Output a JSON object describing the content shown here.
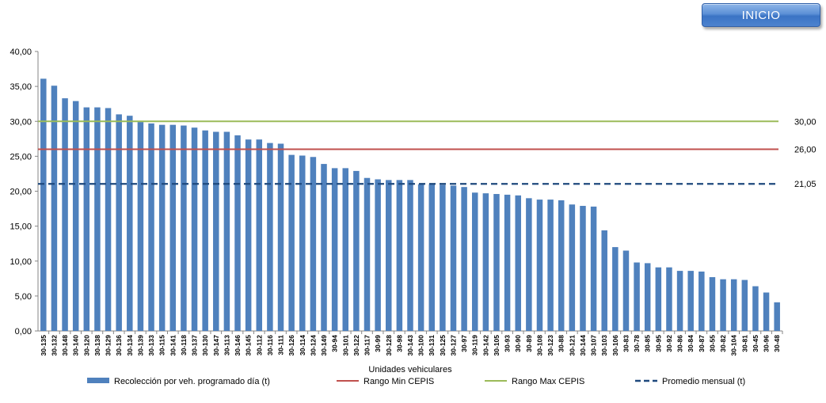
{
  "button": {
    "label": "INICIO"
  },
  "colors": {
    "bar": "#4f81bd",
    "min": "#c0504d",
    "max": "#9bbb59",
    "avg": "#1f497d"
  },
  "chart_data": {
    "type": "bar",
    "xlabel": "Unidades vehiculares",
    "ylim": [
      0,
      40
    ],
    "yticks": [
      "0,00",
      "5,00",
      "10,00",
      "15,00",
      "20,00",
      "25,00",
      "30,00",
      "35,00",
      "40,00"
    ],
    "categories": [
      "30-135",
      "30-132",
      "30-148",
      "30-140",
      "30-120",
      "30-138",
      "30-129",
      "30-136",
      "30-134",
      "30-139",
      "30-133",
      "30-115",
      "30-141",
      "30-118",
      "30-137",
      "30-130",
      "30-147",
      "30-113",
      "30-146",
      "30-145",
      "30-112",
      "30-116",
      "30-111",
      "30-126",
      "30-114",
      "30-124",
      "30-149",
      "30-94",
      "30-101",
      "30-122",
      "30-117",
      "30-99",
      "30-128",
      "30-98",
      "30-143",
      "30-100",
      "30-131",
      "30-125",
      "30-127",
      "30-97",
      "30-119",
      "30-142",
      "30-105",
      "30-93",
      "30-90",
      "30-89",
      "30-108",
      "30-123",
      "30-88",
      "30-121",
      "30-144",
      "30-107",
      "30-103",
      "30-106",
      "30-83",
      "30-78",
      "30-85",
      "30-95",
      "30-92",
      "30-86",
      "30-84",
      "30-87",
      "30-55",
      "30-82",
      "30-104",
      "30-81",
      "30-45",
      "30-96",
      "30-48"
    ],
    "series": [
      {
        "name": "Recolección por veh. programado día (t)",
        "type": "bar",
        "values": [
          36.1,
          35.1,
          33.3,
          32.9,
          32.0,
          32.0,
          31.9,
          31.0,
          30.8,
          29.9,
          29.7,
          29.5,
          29.5,
          29.4,
          29.1,
          28.7,
          28.5,
          28.5,
          28.0,
          27.4,
          27.4,
          26.9,
          26.8,
          25.2,
          25.1,
          24.9,
          23.9,
          23.3,
          23.3,
          22.9,
          21.9,
          21.7,
          21.6,
          21.6,
          21.6,
          21.0,
          21.0,
          20.9,
          20.8,
          20.6,
          19.8,
          19.7,
          19.6,
          19.5,
          19.4,
          19.0,
          18.8,
          18.8,
          18.7,
          18.1,
          17.9,
          17.8,
          14.4,
          12.0,
          11.5,
          9.8,
          9.7,
          9.1,
          9.1,
          8.6,
          8.6,
          8.5,
          7.7,
          7.4,
          7.4,
          7.3,
          6.4,
          5.5,
          4.1
        ]
      },
      {
        "name": "Rango Min CEPIS",
        "type": "line",
        "value": 26.0,
        "label": "26,00"
      },
      {
        "name": "Rango Max CEPIS",
        "type": "line",
        "value": 30.0,
        "label": "30,00"
      },
      {
        "name": "Promedio mensual (t)",
        "type": "line",
        "value": 21.05,
        "label": "21,05"
      }
    ],
    "legend": "bottom"
  }
}
